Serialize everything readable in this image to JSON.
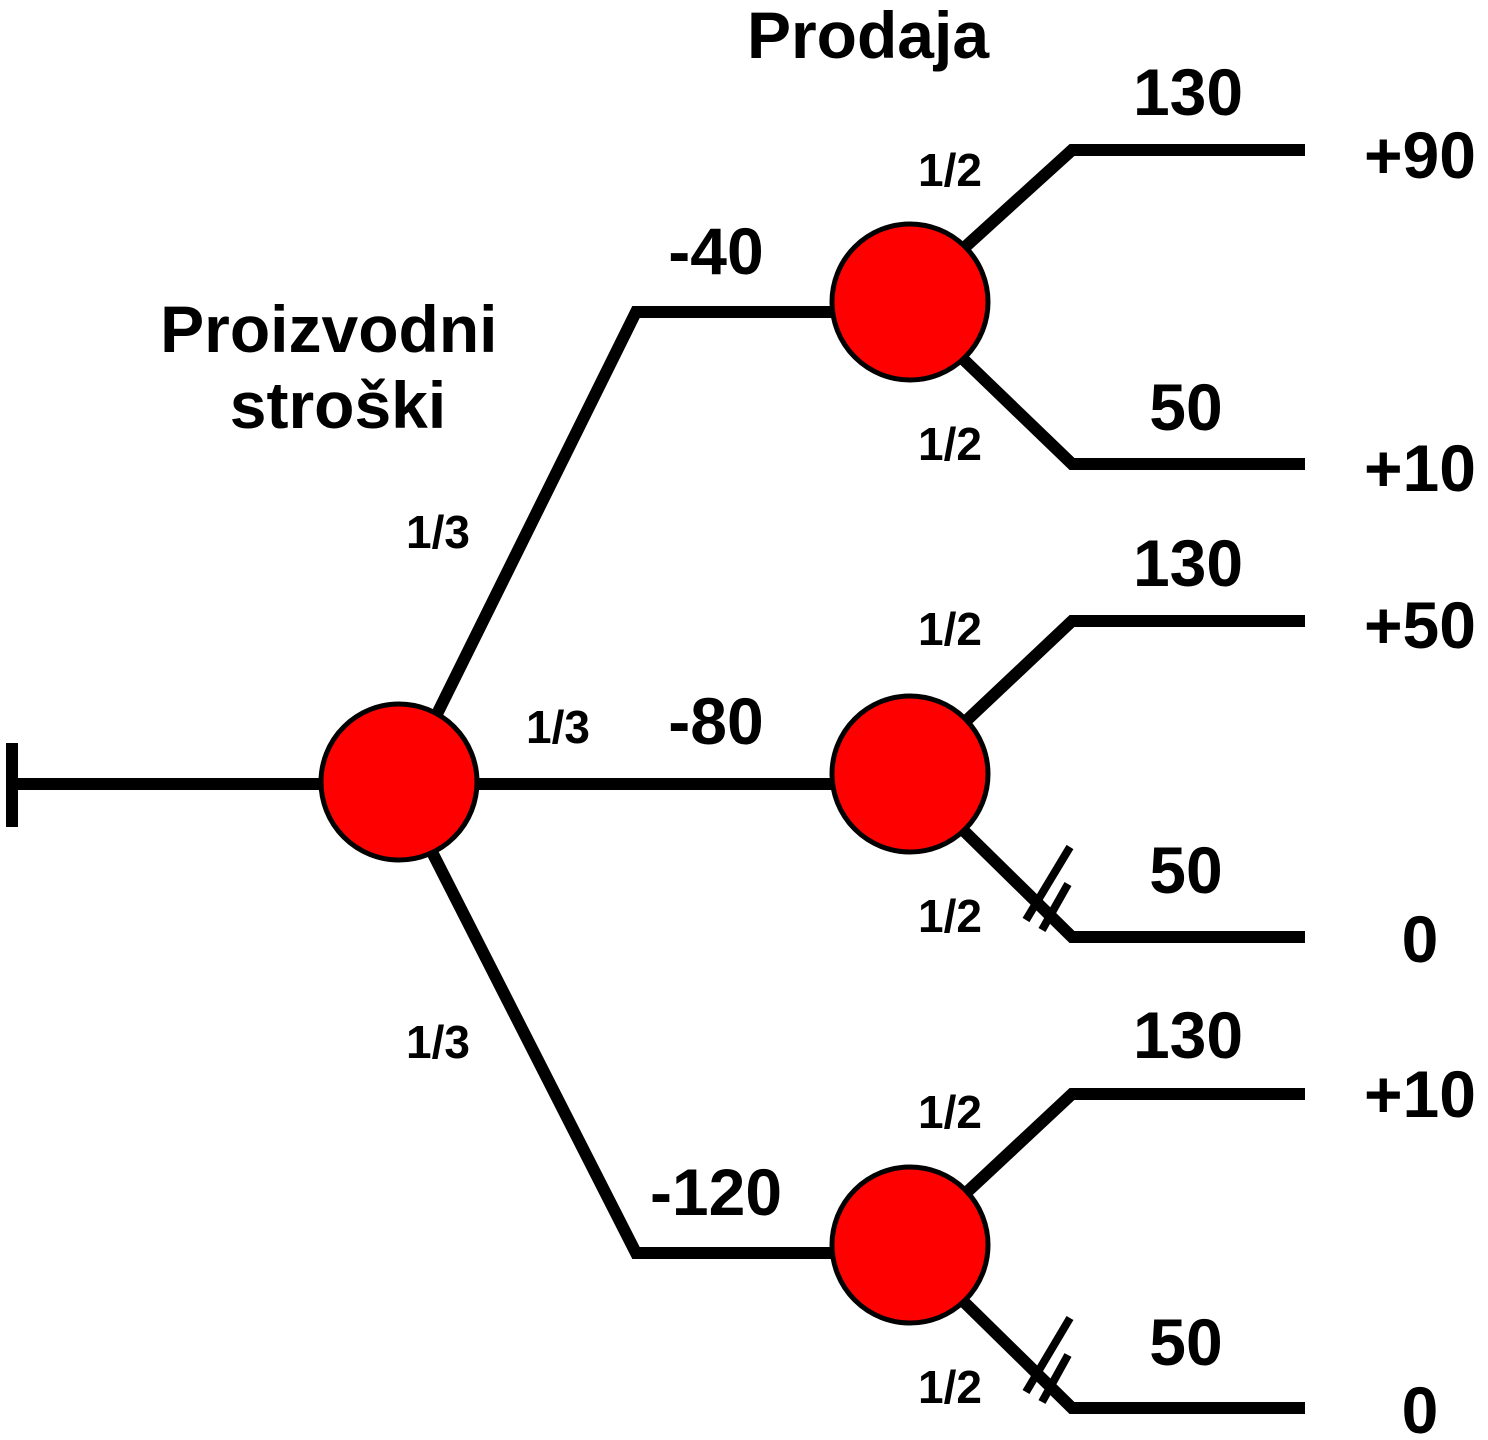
{
  "colors": {
    "node_fill": "#ff0000",
    "line": "#000000",
    "background": "#ffffff"
  },
  "headers": {
    "stage1": "Proizvodni\nstroški",
    "stage2": "Prodaja"
  },
  "root": {
    "probabilities": [
      "1/3",
      "1/3",
      "1/3"
    ]
  },
  "branches": [
    {
      "cost": "-40",
      "outcomes": [
        {
          "prob": "1/2",
          "sale": "130",
          "result": "+90",
          "cut": false
        },
        {
          "prob": "1/2",
          "sale": "50",
          "result": "+10",
          "cut": false
        }
      ]
    },
    {
      "cost": "-80",
      "outcomes": [
        {
          "prob": "1/2",
          "sale": "130",
          "result": "+50",
          "cut": false
        },
        {
          "prob": "1/2",
          "sale": "50",
          "result": "0",
          "cut": true
        }
      ]
    },
    {
      "cost": "-120",
      "outcomes": [
        {
          "prob": "1/2",
          "sale": "130",
          "result": "+10",
          "cut": false
        },
        {
          "prob": "1/2",
          "sale": "50",
          "result": "0",
          "cut": true
        }
      ]
    }
  ]
}
